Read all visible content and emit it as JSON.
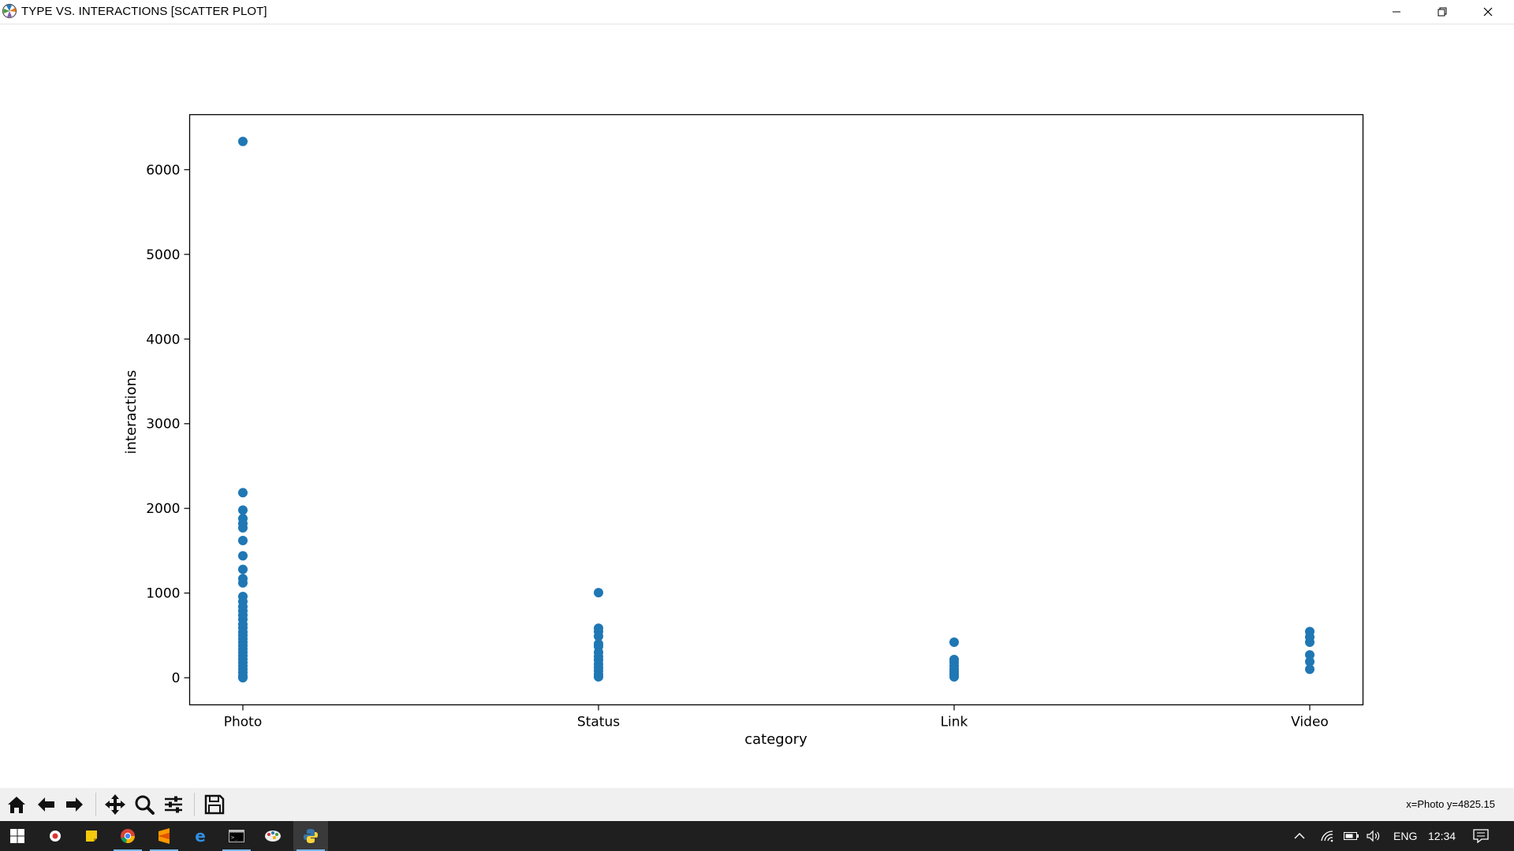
{
  "window": {
    "title": "TYPE VS. INTERACTIONS [SCATTER PLOT]"
  },
  "status": {
    "coords": "x=Photo y=4825.15"
  },
  "taskbar": {
    "language": "ENG",
    "time": "12:34"
  },
  "colors": {
    "marker": "#1f77b4",
    "taskbar": "#1f1f1f",
    "toolbar": "#f0f0f0"
  },
  "icons": [
    "matplotlib-icon",
    "minimize-icon",
    "maximize-icon",
    "close-icon",
    "home-icon",
    "back-arrow-icon",
    "forward-arrow-icon",
    "pan-icon",
    "zoom-icon",
    "configure-subplots-icon",
    "save-icon",
    "windows-start-icon",
    "chrome-icon",
    "sticky-notes-icon",
    "sublime-icon",
    "edge-icon",
    "terminal-icon",
    "paint-icon",
    "python-icon",
    "chevron-up-icon",
    "wifi-icon",
    "battery-icon",
    "volume-icon",
    "notifications-icon"
  ],
  "chart_data": {
    "type": "scatter",
    "categories": [
      "Photo",
      "Status",
      "Link",
      "Video"
    ],
    "xlabel": "category",
    "ylabel": "interactions",
    "ylim": [
      -320,
      6650
    ],
    "yticks": [
      0,
      1000,
      2000,
      3000,
      4000,
      5000,
      6000
    ],
    "grid": false,
    "series": [
      {
        "points": [
          [
            "Photo",
            6334
          ],
          [
            "Photo",
            2185
          ],
          [
            "Photo",
            1980
          ],
          [
            "Photo",
            1880
          ],
          [
            "Photo",
            1820
          ],
          [
            "Photo",
            1770
          ],
          [
            "Photo",
            1620
          ],
          [
            "Photo",
            1440
          ],
          [
            "Photo",
            1280
          ],
          [
            "Photo",
            1170
          ],
          [
            "Photo",
            1120
          ],
          [
            "Photo",
            960
          ],
          [
            "Photo",
            900
          ],
          [
            "Photo",
            840
          ],
          [
            "Photo",
            790
          ],
          [
            "Photo",
            740
          ],
          [
            "Photo",
            690
          ],
          [
            "Photo",
            630
          ],
          [
            "Photo",
            590
          ],
          [
            "Photo",
            540
          ],
          [
            "Photo",
            500
          ],
          [
            "Photo",
            460
          ],
          [
            "Photo",
            420
          ],
          [
            "Photo",
            380
          ],
          [
            "Photo",
            340
          ],
          [
            "Photo",
            300
          ],
          [
            "Photo",
            260
          ],
          [
            "Photo",
            220
          ],
          [
            "Photo",
            180
          ],
          [
            "Photo",
            140
          ],
          [
            "Photo",
            100
          ],
          [
            "Photo",
            60
          ],
          [
            "Photo",
            20
          ],
          [
            "Photo",
            0
          ],
          [
            "Status",
            1005
          ],
          [
            "Status",
            585
          ],
          [
            "Status",
            545
          ],
          [
            "Status",
            490
          ],
          [
            "Status",
            400
          ],
          [
            "Status",
            370
          ],
          [
            "Status",
            300
          ],
          [
            "Status",
            250
          ],
          [
            "Status",
            210
          ],
          [
            "Status",
            160
          ],
          [
            "Status",
            120
          ],
          [
            "Status",
            80
          ],
          [
            "Status",
            40
          ],
          [
            "Status",
            10
          ],
          [
            "Link",
            420
          ],
          [
            "Link",
            215
          ],
          [
            "Link",
            180
          ],
          [
            "Link",
            140
          ],
          [
            "Link",
            100
          ],
          [
            "Link",
            70
          ],
          [
            "Link",
            40
          ],
          [
            "Link",
            10
          ],
          [
            "Video",
            545
          ],
          [
            "Video",
            480
          ],
          [
            "Video",
            420
          ],
          [
            "Video",
            270
          ],
          [
            "Video",
            190
          ],
          [
            "Video",
            100
          ]
        ]
      }
    ]
  }
}
